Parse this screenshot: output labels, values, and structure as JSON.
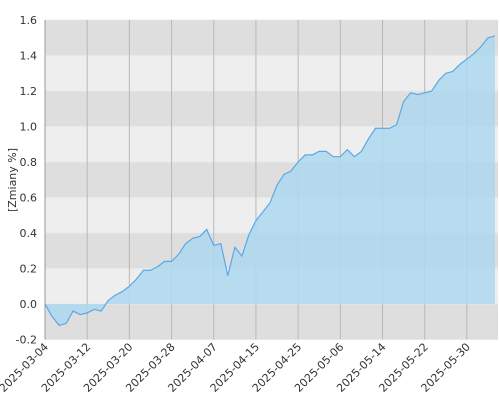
{
  "chart_data": {
    "type": "area",
    "y_label": "[Zmiany %]",
    "categories": [
      "2025-03-04",
      null,
      null,
      null,
      null,
      null,
      "2025-03-12",
      null,
      null,
      null,
      null,
      null,
      "2025-03-20",
      null,
      null,
      null,
      null,
      null,
      "2025-03-28",
      null,
      null,
      null,
      null,
      null,
      "2025-04-07",
      null,
      null,
      null,
      null,
      null,
      "2025-04-15",
      null,
      null,
      null,
      null,
      null,
      "2025-04-25",
      null,
      null,
      null,
      null,
      null,
      "2025-05-06",
      null,
      null,
      null,
      null,
      null,
      "2025-05-14",
      null,
      null,
      null,
      null,
      null,
      "2025-05-22",
      null,
      null,
      null,
      null,
      null,
      "2025-05-30",
      null,
      null,
      null,
      null
    ],
    "values": [
      0.0,
      -0.07,
      -0.12,
      -0.11,
      -0.04,
      -0.06,
      -0.05,
      -0.03,
      -0.04,
      0.02,
      0.05,
      0.07,
      0.1,
      0.14,
      0.19,
      0.19,
      0.21,
      0.24,
      0.24,
      0.28,
      0.34,
      0.37,
      0.38,
      0.42,
      0.33,
      0.34,
      0.16,
      0.32,
      0.27,
      0.39,
      0.47,
      0.52,
      0.57,
      0.67,
      0.73,
      0.75,
      0.8,
      0.84,
      0.84,
      0.86,
      0.86,
      0.83,
      0.83,
      0.87,
      0.83,
      0.86,
      0.93,
      0.99,
      0.99,
      0.99,
      1.01,
      1.14,
      1.19,
      1.18,
      1.19,
      1.2,
      1.26,
      1.3,
      1.31,
      1.35,
      1.38,
      1.41,
      1.45,
      1.5,
      1.51
    ],
    "color": "#5aa8e6",
    "fill_color": "#add8ee",
    "ylim": [
      -0.2,
      1.6
    ],
    "yticks": [
      -0.2,
      {
        "value": 0,
        "label": "0.0"
      },
      0.2,
      0.4,
      0.6,
      0.8,
      {
        "value": 1,
        "label": "1.0"
      },
      1.2,
      1.4,
      1.6
    ],
    "grid": true
  }
}
